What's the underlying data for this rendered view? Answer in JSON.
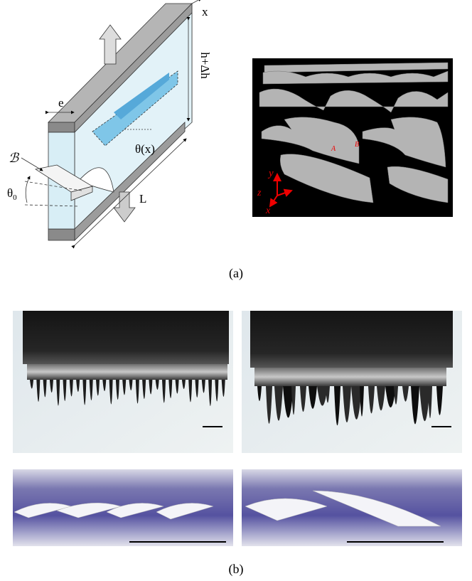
{
  "figure": {
    "panel_a": {
      "label": "(a)",
      "schematic": {
        "x_axis": "x",
        "height": "h+Δh",
        "thickness": "e",
        "angle": "θ(x)",
        "blade": "ℬ",
        "initial_angle": "θ",
        "initial_angle_sub": "0",
        "length": "L"
      },
      "simulation": {
        "axis_y": "y",
        "axis_z": "z",
        "axis_x": "x",
        "point_a": "A",
        "point_b": "B"
      }
    },
    "panel_b": {
      "label": "(b)"
    }
  }
}
